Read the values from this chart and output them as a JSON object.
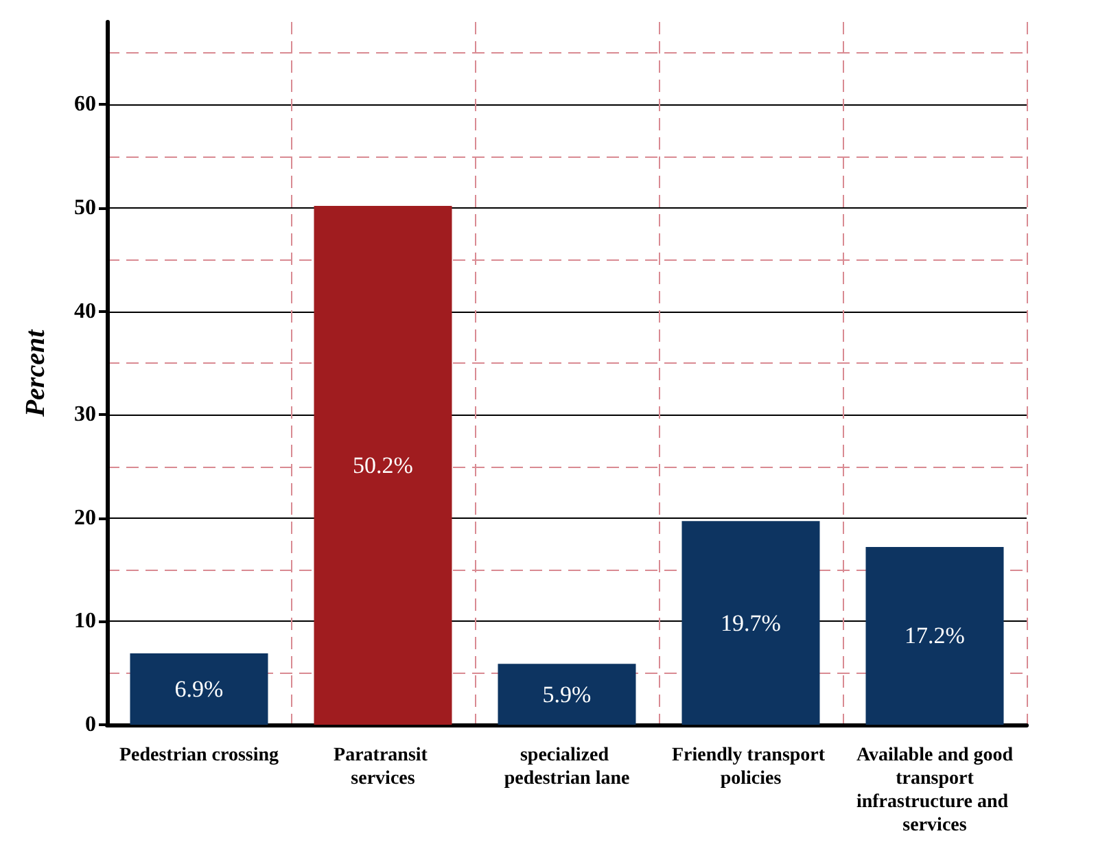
{
  "chart_data": {
    "type": "bar",
    "ylabel": "Percent",
    "categories": [
      "Pedestrian crossing",
      "Paratransit services",
      "specialized pedestrian lane",
      "Friendly transport policies",
      "Available and good transport infrastructure and services"
    ],
    "values": [
      6.9,
      50.2,
      5.9,
      19.7,
      17.2
    ],
    "colors": [
      "#0d3461",
      "#a01c1f",
      "#0d3461",
      "#0d3461",
      "#0d3461"
    ],
    "value_labels": [
      "6.9%",
      "50.2%",
      "5.9%",
      "19.7%",
      "17.2%"
    ],
    "ylim": [
      0,
      68
    ],
    "yticks": [
      0,
      10,
      20,
      30,
      40,
      50,
      60
    ],
    "grid": true
  }
}
